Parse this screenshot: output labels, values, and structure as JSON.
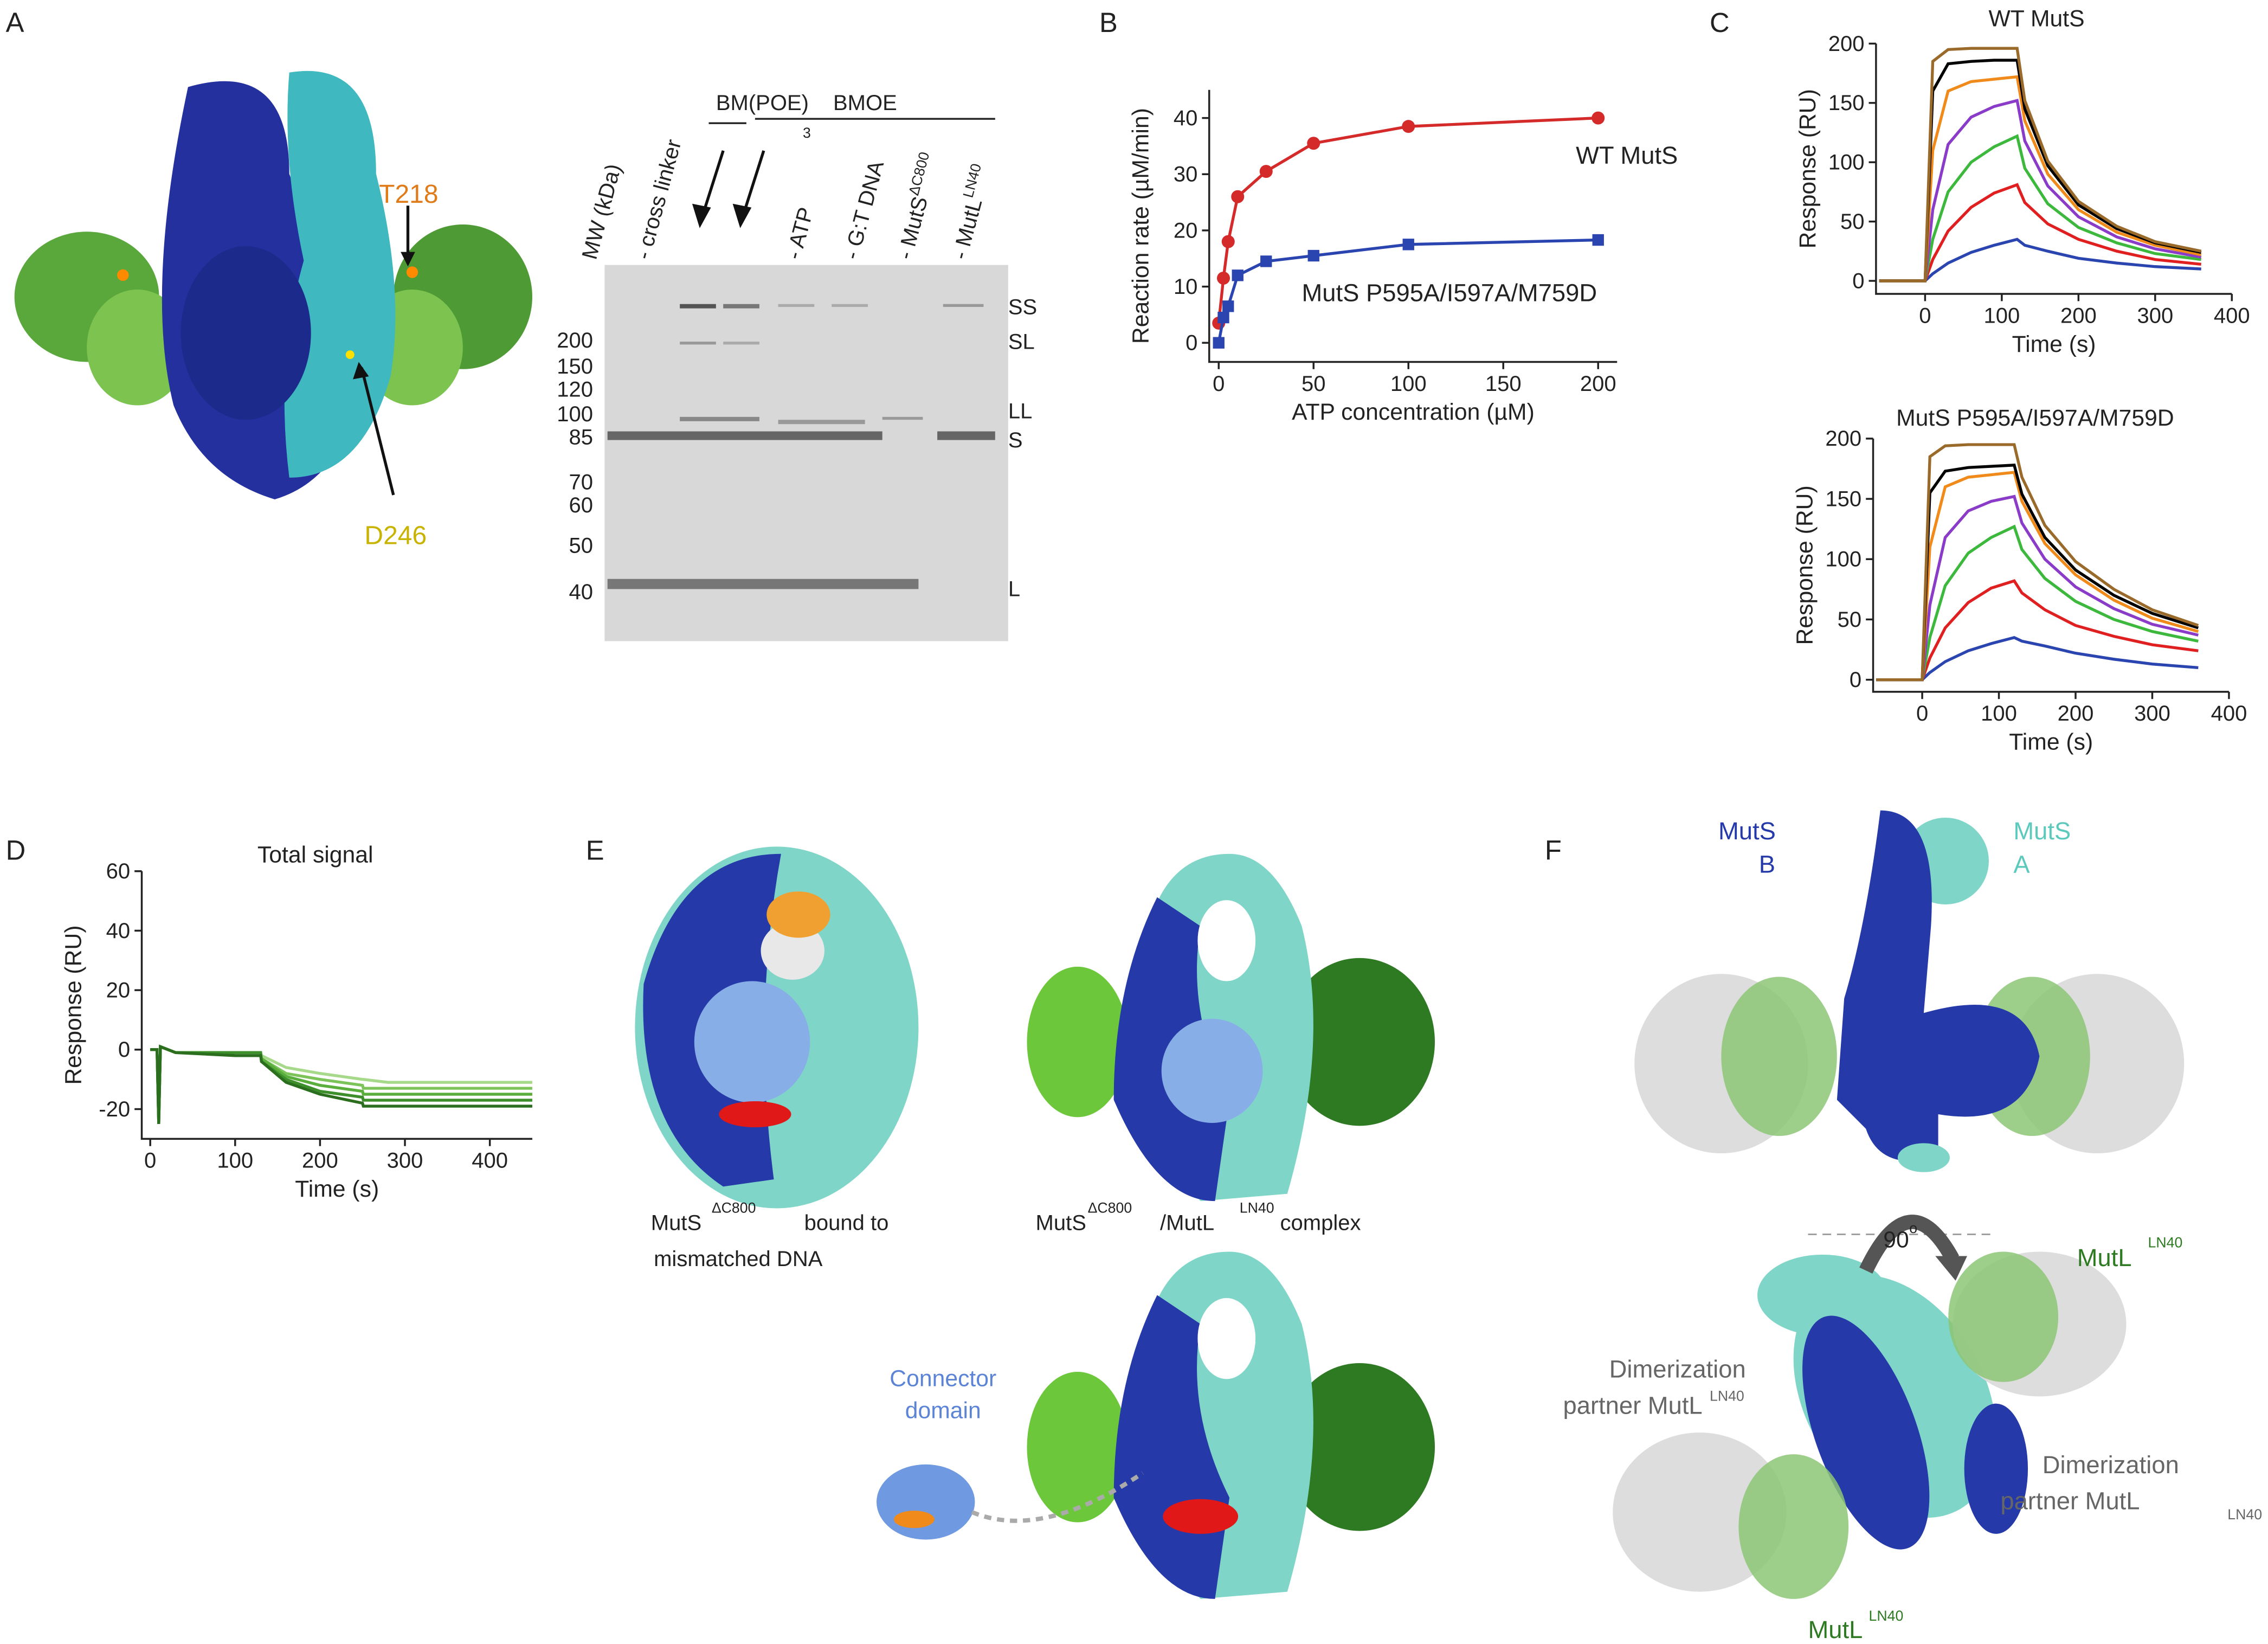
{
  "panel_labels": [
    "A",
    "B",
    "C",
    "D",
    "E",
    "F"
  ],
  "panel_a": {
    "residues": [
      "T218",
      "D246"
    ]
  },
  "gel": {
    "mw_title": "MW (kDa)",
    "lanes": [
      {
        "text": "- cross linker"
      },
      {
        "text": "- ATP"
      },
      {
        "text": "- G:T DNA"
      },
      {
        "text": "- MutS",
        "sup": "ΔC800"
      },
      {
        "text": "- MutL",
        "sup": "LN40"
      }
    ],
    "groups": [
      {
        "label": "BM(POE)",
        "sub": "3"
      },
      {
        "label": "BMOE"
      }
    ],
    "mw": [
      200,
      150,
      120,
      100,
      85,
      70,
      60,
      50,
      40
    ],
    "bands": [
      "SS",
      "SL",
      "LL",
      "S",
      "L"
    ]
  },
  "chart_data": [
    {
      "type": "line",
      "xlabel": "ATP concentration (µM)",
      "ylabel": "Reaction rate (µM/min)",
      "markers": true,
      "x": [
        0,
        2.5,
        5,
        10,
        25,
        50,
        100,
        200
      ],
      "series": [
        {
          "name": "WT MutS",
          "color": "#d42a2a",
          "marker": "circle",
          "values": [
            3.5,
            11.5,
            18,
            26,
            30.5,
            35.5,
            38.5,
            40
          ]
        },
        {
          "name": "MutS P595A/I597A/M759D",
          "color": "#2a44b0",
          "marker": "square",
          "values": [
            0,
            4.5,
            6.5,
            12,
            14.5,
            15.5,
            17.5,
            18.3
          ]
        }
      ],
      "xlim": [
        -5,
        210
      ],
      "ylim": [
        -3.4,
        45
      ],
      "xticks": [
        0,
        50,
        100,
        150,
        200
      ],
      "yticks": [
        0,
        10,
        20,
        30,
        40
      ]
    },
    {
      "type": "line",
      "title": "WT MutS",
      "xlabel": "Time (s)",
      "ylabel": "Response (RU)",
      "x": [
        -60,
        0,
        10,
        30,
        60,
        90,
        120,
        130,
        160,
        200,
        250,
        300,
        360
      ],
      "series": [
        {
          "color": "#2a44b0",
          "values": [
            0,
            0,
            6,
            15,
            24,
            30,
            35,
            30,
            25,
            19,
            15,
            12,
            10
          ]
        },
        {
          "color": "#e02020",
          "values": [
            0,
            0,
            18,
            42,
            62,
            74,
            81,
            66,
            48,
            35,
            25,
            18,
            14
          ]
        },
        {
          "color": "#3cb83c",
          "values": [
            0,
            0,
            35,
            75,
            100,
            113,
            122,
            95,
            65,
            45,
            32,
            23,
            18
          ]
        },
        {
          "color": "#8a3cc8",
          "values": [
            0,
            0,
            60,
            115,
            138,
            147,
            152,
            118,
            80,
            54,
            37,
            27,
            20
          ]
        },
        {
          "color": "#f08a1a",
          "values": [
            0,
            0,
            110,
            160,
            168,
            170,
            172,
            135,
            90,
            60,
            41,
            30,
            22
          ]
        },
        {
          "color": "#000000",
          "values": [
            0,
            0,
            160,
            183,
            185,
            186,
            186,
            145,
            97,
            64,
            44,
            32,
            24
          ]
        },
        {
          "color": "#9a6a2a",
          "values": [
            0,
            0,
            185,
            195,
            196,
            196,
            196,
            152,
            101,
            67,
            46,
            33,
            25
          ]
        }
      ],
      "xlim": [
        -64,
        400
      ],
      "ylim": [
        -11,
        200
      ],
      "xticks": [
        0,
        100,
        200,
        300,
        400
      ],
      "yticks": [
        0,
        50,
        100,
        150,
        200
      ]
    },
    {
      "type": "line",
      "title": "MutS P595A/I597A/M759D",
      "xlabel": "Time (s)",
      "ylabel": "Response (RU)",
      "x": [
        -60,
        0,
        10,
        30,
        60,
        90,
        120,
        130,
        160,
        200,
        250,
        300,
        360
      ],
      "series": [
        {
          "color": "#2a44b0",
          "values": [
            0,
            0,
            6,
            15,
            24,
            30,
            35,
            32,
            28,
            22,
            17,
            13,
            10
          ]
        },
        {
          "color": "#e02020",
          "values": [
            0,
            0,
            18,
            43,
            64,
            76,
            82,
            72,
            58,
            45,
            36,
            29,
            24
          ]
        },
        {
          "color": "#3cb83c",
          "values": [
            0,
            0,
            35,
            78,
            105,
            118,
            127,
            108,
            84,
            65,
            50,
            40,
            32
          ]
        },
        {
          "color": "#8a3cc8",
          "values": [
            0,
            0,
            62,
            118,
            140,
            148,
            152,
            130,
            100,
            77,
            59,
            46,
            37
          ]
        },
        {
          "color": "#f08a1a",
          "values": [
            0,
            0,
            110,
            160,
            168,
            170,
            172,
            148,
            113,
            87,
            66,
            51,
            40
          ]
        },
        {
          "color": "#000000",
          "values": [
            0,
            0,
            155,
            173,
            176,
            177,
            178,
            154,
            118,
            91,
            70,
            55,
            43
          ]
        },
        {
          "color": "#9a6a2a",
          "values": [
            0,
            0,
            185,
            194,
            195,
            195,
            195,
            168,
            128,
            98,
            75,
            58,
            45
          ]
        }
      ],
      "xlim": [
        -64,
        400
      ],
      "ylim": [
        -10,
        200
      ],
      "xticks": [
        0,
        100,
        200,
        300,
        400
      ],
      "yticks": [
        0,
        50,
        100,
        150,
        200
      ]
    },
    {
      "type": "line",
      "title": "Total signal",
      "xlabel": "Time (s)",
      "ylabel": "Response (RU)",
      "x": [
        0,
        8,
        10,
        12,
        30,
        100,
        130,
        131,
        160,
        200,
        250,
        251,
        280,
        350,
        450
      ],
      "series": [
        {
          "color": "#a6d98a",
          "values": [
            0,
            0,
            -25,
            1,
            -1,
            -1,
            -1,
            -2,
            -6,
            -8,
            -10,
            -10,
            -11,
            -11,
            -11
          ]
        },
        {
          "color": "#7cc35a",
          "values": [
            0,
            0,
            -25,
            1,
            -1,
            -1,
            -1,
            -3,
            -8,
            -10,
            -12,
            -13,
            -13,
            -13,
            -13
          ]
        },
        {
          "color": "#5aae3c",
          "values": [
            0,
            0,
            -25,
            1,
            -1,
            -1,
            -1,
            -3,
            -9,
            -12,
            -14,
            -15,
            -15,
            -15,
            -15
          ]
        },
        {
          "color": "#3c8f2a",
          "values": [
            0,
            0,
            -25,
            1,
            -1,
            -1,
            -1,
            -4,
            -10,
            -14,
            -16,
            -17,
            -17,
            -17,
            -17
          ]
        },
        {
          "color": "#2a6e1e",
          "values": [
            0,
            0,
            -25,
            1,
            -1,
            -2,
            -2,
            -4,
            -11,
            -15,
            -18,
            -19,
            -19,
            -19,
            -19
          ]
        }
      ],
      "xlim": [
        -10,
        450
      ],
      "ylim": [
        -30,
        60
      ],
      "xticks": [
        0,
        100,
        200,
        300,
        400
      ],
      "yticks": [
        -20,
        0,
        20,
        40,
        60
      ]
    }
  ],
  "panel_e": {
    "left_caption": {
      "protein": "MutS",
      "variant": "ΔC800",
      "tail": "bound to",
      "line2": "mismatched DNA"
    },
    "right_caption": {
      "protein": "MutS",
      "variant": "ΔC800",
      "partner": "/MutL",
      "partner_variant": "LN40",
      "tail": "complex"
    },
    "connector": [
      "Connector",
      "domain"
    ]
  },
  "panel_f": {
    "chain_b": [
      "MutS",
      "B"
    ],
    "chain_a": [
      "MutS",
      "A"
    ],
    "rotation": [
      "90",
      "o"
    ],
    "mutl_top": [
      "MutL",
      "LN40"
    ],
    "mutl_bottom": [
      "MutL",
      "LN40"
    ],
    "partner_left": [
      "Dimerization",
      "partner MutL",
      "LN40"
    ],
    "partner_right": [
      "Dimerization",
      "partner MutL",
      "LN40"
    ]
  }
}
